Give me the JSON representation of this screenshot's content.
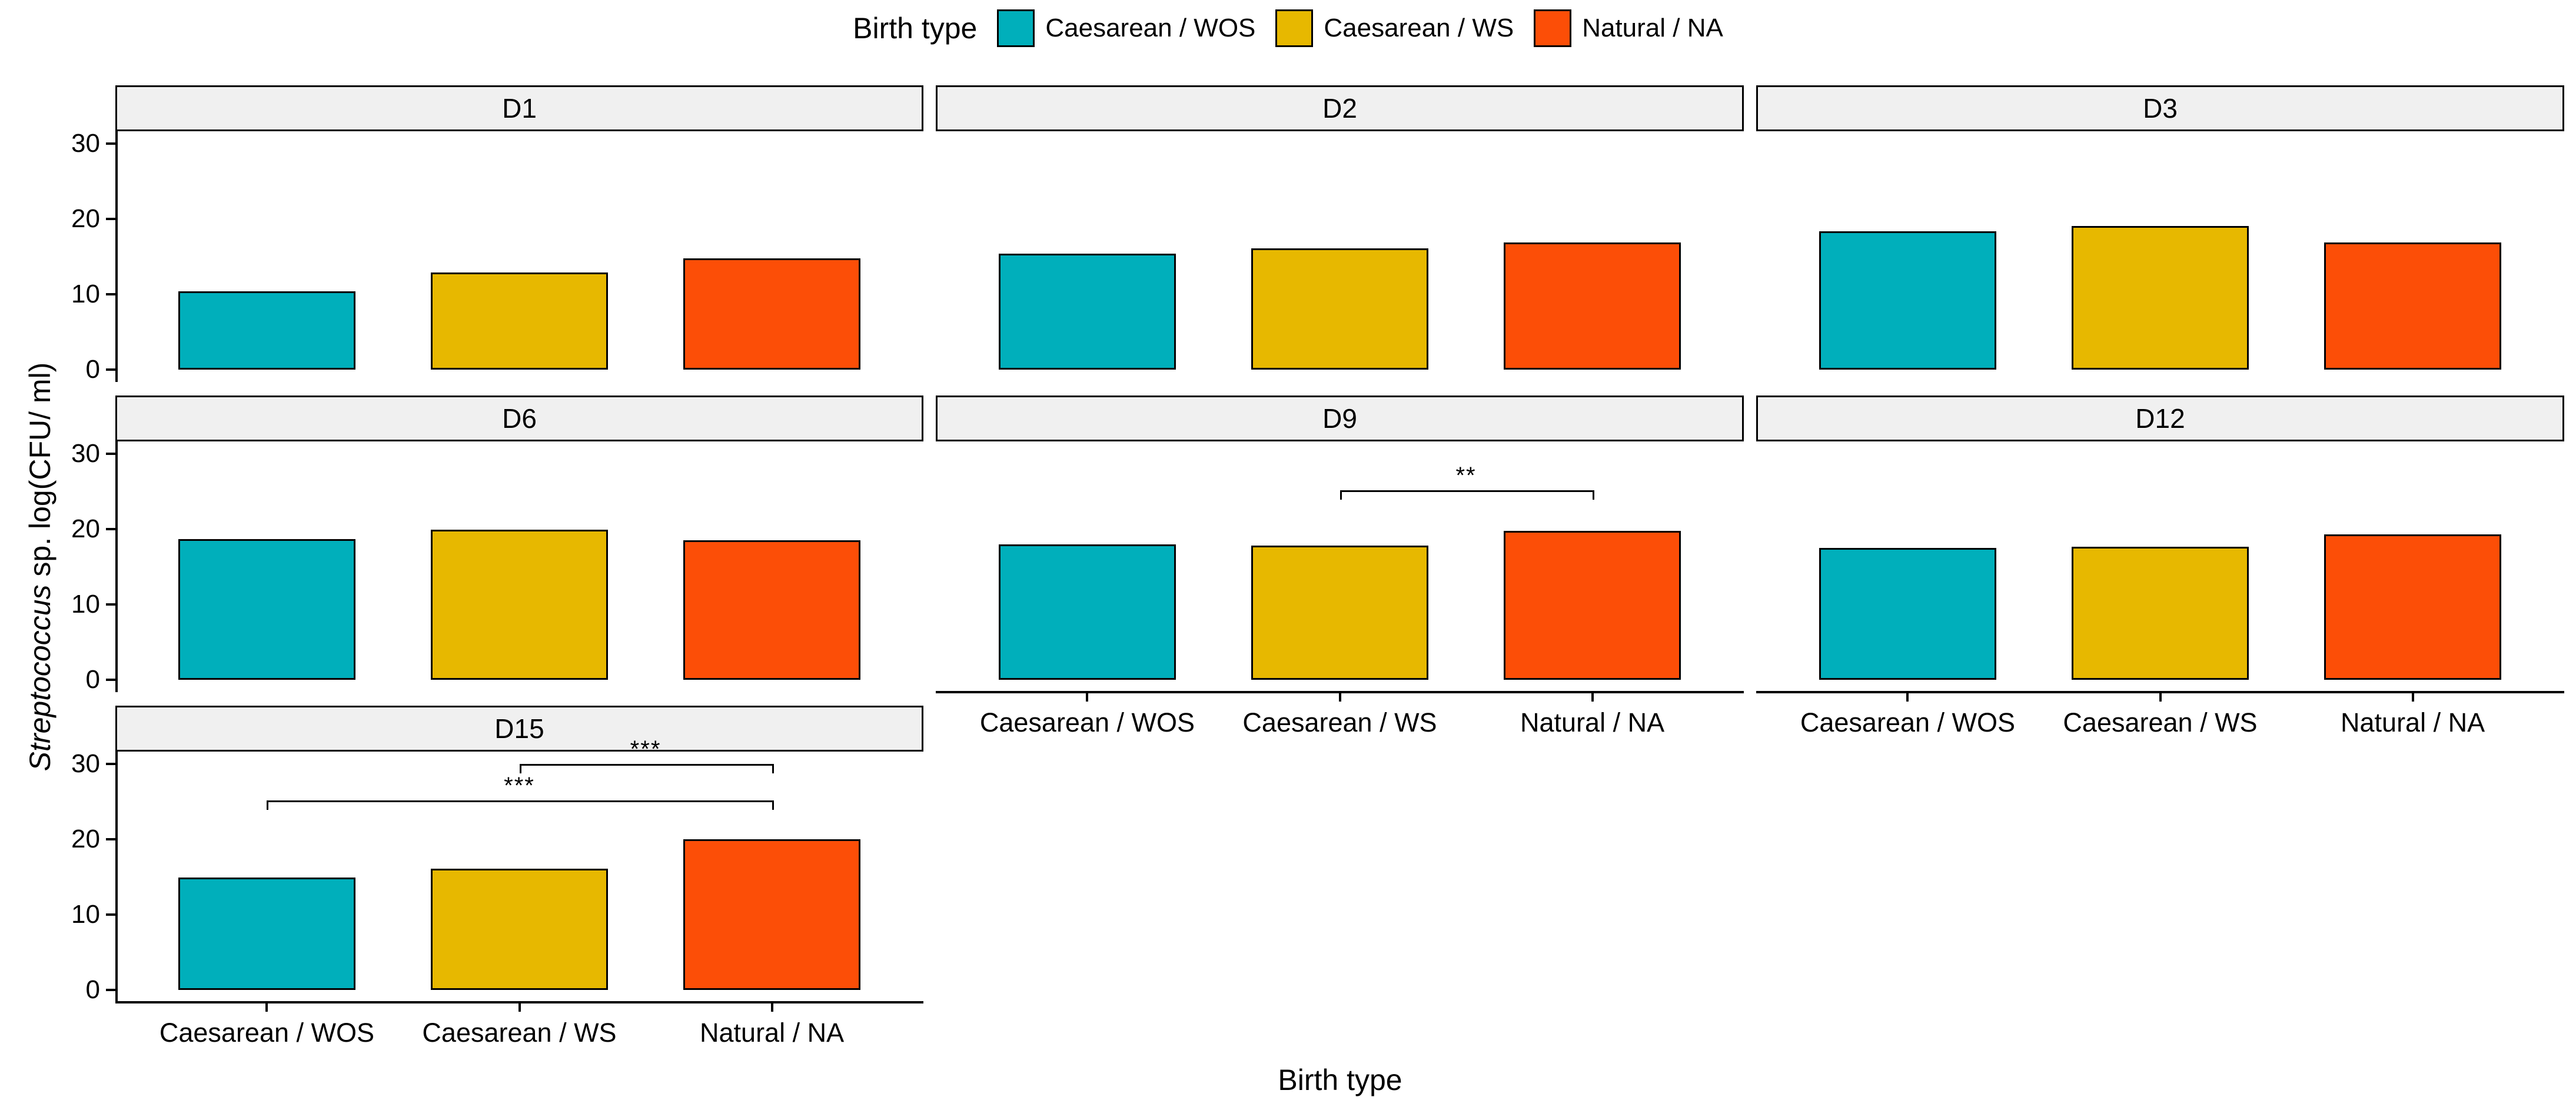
{
  "chart_data": {
    "type": "bar",
    "title": "",
    "xlabel": "Birth type",
    "ylabel_italic": "Streptococcus",
    "ylabel_rest": " sp. log(CFU/ ml)",
    "legend": {
      "title": "Birth type",
      "position": "top",
      "entries": [
        {
          "label": "Caesarean / WOS",
          "color": "#00AFBB"
        },
        {
          "label": "Caesarean / WS",
          "color": "#E7B800"
        },
        {
          "label": "Natural / NA",
          "color": "#FC4E07"
        }
      ]
    },
    "categories": [
      "Caesarean / WOS",
      "Caesarean / WS",
      "Natural / NA"
    ],
    "bar_colors": [
      "#00AFBB",
      "#E7B800",
      "#FC4E07"
    ],
    "y_ticks": [
      0,
      10,
      20,
      30
    ],
    "ylim": [
      -1.67,
      31.67
    ],
    "grid": "off",
    "facets": [
      {
        "label": "D1",
        "row": 0,
        "col": 0,
        "values": [
          10.4,
          12.9,
          14.8
        ]
      },
      {
        "label": "D2",
        "row": 0,
        "col": 1,
        "values": [
          15.4,
          16.1,
          16.9
        ]
      },
      {
        "label": "D3",
        "row": 0,
        "col": 2,
        "values": [
          18.4,
          19.1,
          16.9
        ]
      },
      {
        "label": "D6",
        "row": 1,
        "col": 0,
        "values": [
          18.7,
          19.9,
          18.5
        ]
      },
      {
        "label": "D9",
        "row": 1,
        "col": 1,
        "values": [
          18.0,
          17.8,
          19.8
        ]
      },
      {
        "label": "D12",
        "row": 1,
        "col": 2,
        "values": [
          17.5,
          17.7,
          19.3
        ]
      },
      {
        "label": "D15",
        "row": 2,
        "col": 0,
        "values": [
          14.9,
          16.1,
          20.0
        ]
      }
    ],
    "significance_brackets": [
      {
        "facet": "D9",
        "from": 1,
        "to": 2,
        "label": "**",
        "height": 25.2
      },
      {
        "facet": "D15",
        "from": 1,
        "to": 2,
        "label": "***",
        "height": 30.0
      },
      {
        "facet": "D15",
        "from": 0,
        "to": 2,
        "label": "***",
        "height": 25.2
      }
    ],
    "panel": {
      "strip_bg": "#F0F0F0",
      "strip_border": "#000000",
      "axis_color": "#000000",
      "bar_border": "#000000",
      "text_color": "#000000"
    }
  }
}
